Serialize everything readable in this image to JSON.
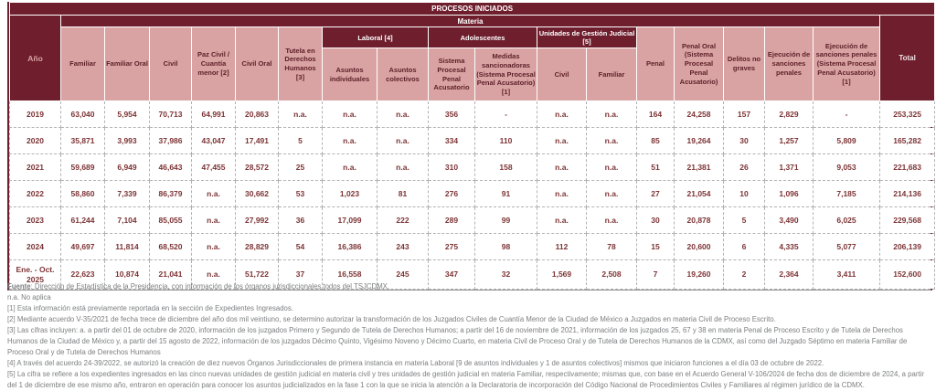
{
  "table": {
    "title": "PROCESOS INICIADOS",
    "materia": "Materia",
    "anio": "Año",
    "total": "Total",
    "cols_left": [
      "Familiar",
      "Familiar Oral",
      "Civil",
      "Paz Civil / Cuantía menor [2]",
      "Civil Oral",
      "Tutela en Derechos Humanos [3]"
    ],
    "group_laboral": "Laboral [4]",
    "group_adolescentes": "Adolescentes",
    "group_ugj": "Unidades de Gestión Judicial [5]",
    "sub_laboral": [
      "Asuntos individuales",
      "Asuntos colectivos"
    ],
    "sub_adolescentes": [
      "Sistema Procesal Penal Acusatorio",
      "Medidas sancionadoras (Sistema Procesal Penal Acusatorio) [1]"
    ],
    "sub_ugj": [
      "Civil",
      "Familiar"
    ],
    "cols_right": [
      "Penal",
      "Penal Oral (Sistema Procesal Penal Acusatorio)",
      "Delitos no graves",
      "Ejecución de sanciones penales",
      "Ejecución de sanciones penales (Sistema Procesal Penal Acusatorio) [1]"
    ],
    "rows": [
      {
        "year": "2019",
        "values": [
          "63,040",
          "5,954",
          "70,713",
          "64,991",
          "20,863",
          "n.a.",
          "n.a.",
          "n.a.",
          "356",
          "-",
          "n.a.",
          "n.a.",
          "164",
          "24,258",
          "157",
          "2,829",
          "-",
          "253,325"
        ]
      },
      {
        "year": "2020",
        "values": [
          "35,871",
          "3,993",
          "37,986",
          "43,047",
          "17,491",
          "5",
          "n.a.",
          "n.a.",
          "334",
          "110",
          "n.a.",
          "n.a.",
          "85",
          "19,264",
          "30",
          "1,257",
          "5,809",
          "165,282"
        ]
      },
      {
        "year": "2021",
        "values": [
          "59,689",
          "6,949",
          "46,643",
          "47,455",
          "28,572",
          "25",
          "n.a.",
          "n.a.",
          "310",
          "158",
          "n.a.",
          "n.a.",
          "51",
          "21,381",
          "26",
          "1,371",
          "9,053",
          "221,683"
        ]
      },
      {
        "year": "2022",
        "values": [
          "58,860",
          "7,339",
          "86,379",
          "n.a.",
          "30,662",
          "53",
          "1,023",
          "81",
          "276",
          "91",
          "n.a.",
          "n.a.",
          "27",
          "21,054",
          "10",
          "1,096",
          "7,185",
          "214,136"
        ]
      },
      {
        "year": "2023",
        "values": [
          "61,244",
          "7,104",
          "85,055",
          "n.a.",
          "27,992",
          "36",
          "17,099",
          "222",
          "289",
          "99",
          "n.a.",
          "n.a.",
          "30",
          "20,878",
          "5",
          "3,490",
          "6,025",
          "229,568"
        ]
      },
      {
        "year": "2024",
        "values": [
          "49,697",
          "11,814",
          "68,520",
          "n.a.",
          "28,829",
          "54",
          "16,386",
          "243",
          "275",
          "98",
          "112",
          "78",
          "15",
          "20,600",
          "6",
          "4,335",
          "5,077",
          "206,139"
        ]
      },
      {
        "year": "Ene. - Oct. 2025",
        "values": [
          "22,623",
          "10,874",
          "21,041",
          "n.a.",
          "51,722",
          "37",
          "16,558",
          "245",
          "347",
          "32",
          "1,569",
          "2,508",
          "7",
          "19,260",
          "2",
          "2,364",
          "3,411",
          "152,600"
        ]
      }
    ]
  },
  "footnotes": {
    "fuente_label": "Fuente",
    "fuente_text": ": Dirección de Estadística de la Presidencia, con información de los órganos jurisdiccionales todos del TSJCDMX.",
    "lines": [
      "n.a. No aplica",
      "[1] Esta información está previamente reportada en la sección de Expedientes Ingresados.",
      "[2] Mediante acuerdo V-35/2021 de fecha trece de diciembre del año dos mil veintiuno, se determino autorizar la transformación de los Juzgados Civiles de Cuantía Menor de la Ciudad de México a Juzgados en materia Civil de Proceso Escrito.",
      "[3] Las cifras incluyen: a. a partir del 01 de octubre de 2020, información de los juzgados Primero y Segundo de Tutela de Derechos Humanos; a partir del 16 de noviembre de 2021, información de los juzgados 25, 67 y 38 en materia Penal de Proceso Escrito y de Tutela de Derechos Humanos de la Ciudad de México y, a partir del 15 agosto de 2022, información de los juzgados Décimo Quinto, Vigésimo Noveno y Décimo Cuarto, en materia Civil de Proceso Oral y de Tutela de Derechos Humanos de la CDMX, así como del Juzgado Séptimo en materia Familiar de Proceso Oral y de Tutela de Derechos Humanos",
      "[4] A través del acuerdo 24-39/2022, se autorizó la creación de diez nuevos Órganos Jurisdiccionales de primera instancia en materia Laboral [9 de asuntos individuales y 1 de asuntos colectivos] mismos que iniciaron funciones a el día 03 de octubre de 2022.",
      "[5] La cifra se refiere a los expedientes ingresados en las cinco nuevas unidades de gestión judicial en materia civil y tres unidades de gestión judicial en materia Familiar, respectivamente; mismas que, con base en el Acuerdo General V-106/2024 de fecha dos de diciembre de 2024, a partir del 1 de diciembre de ese mismo año, entraron en operación para conocer los asuntos judicializados en la fase 1 con la que se inicia la atención a la Declaratoria de incorporación del Código Nacional de Procedimientos Civiles y Familiares al régimen jurídico de la CDMX."
    ]
  }
}
